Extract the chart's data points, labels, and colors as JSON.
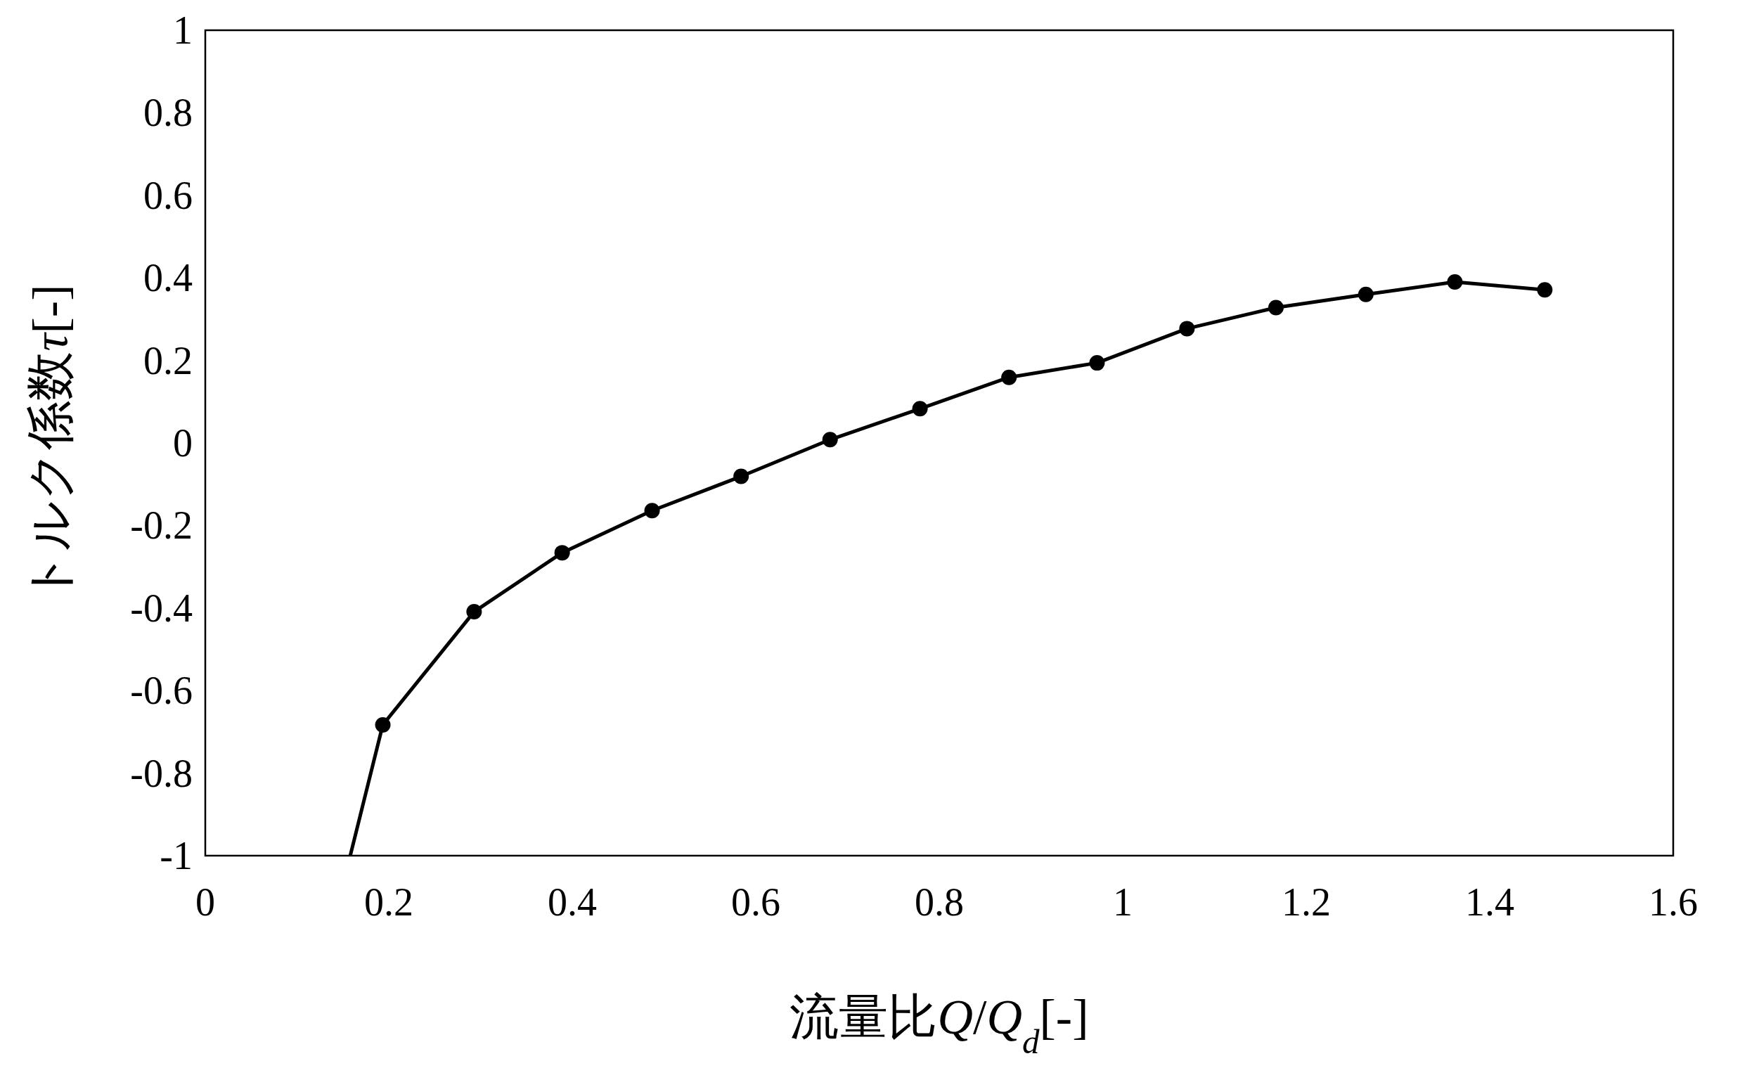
{
  "chart_data": {
    "type": "line",
    "xlabel": "流量比Q/Q$_{d}$[-]",
    "ylabel": "トルク係数τ[-]",
    "xlim": [
      0,
      1.6
    ],
    "ylim": [
      -1,
      1
    ],
    "xticks": [
      0,
      0.2,
      0.4,
      0.6,
      0.8,
      1,
      1.2,
      1.4,
      1.6
    ],
    "yticks": [
      -1,
      -0.8,
      -0.6,
      -0.4,
      -0.2,
      0,
      0.2,
      0.4,
      0.6,
      0.8,
      1
    ],
    "series": [
      {
        "color": "#000000",
        "marker": "circle",
        "x": [
          0.158,
          0.1935,
          0.293,
          0.389,
          0.487,
          0.584,
          0.681,
          0.779,
          0.876,
          0.972,
          1.07,
          1.167,
          1.265,
          1.362,
          1.46
        ],
        "values": [
          -1,
          -0.683,
          -0.409,
          -0.266,
          -0.164,
          -0.081,
          0.008,
          0.083,
          0.159,
          0.194,
          0.277,
          0.328,
          0.36,
          0.39,
          0.371
        ]
      }
    ]
  }
}
